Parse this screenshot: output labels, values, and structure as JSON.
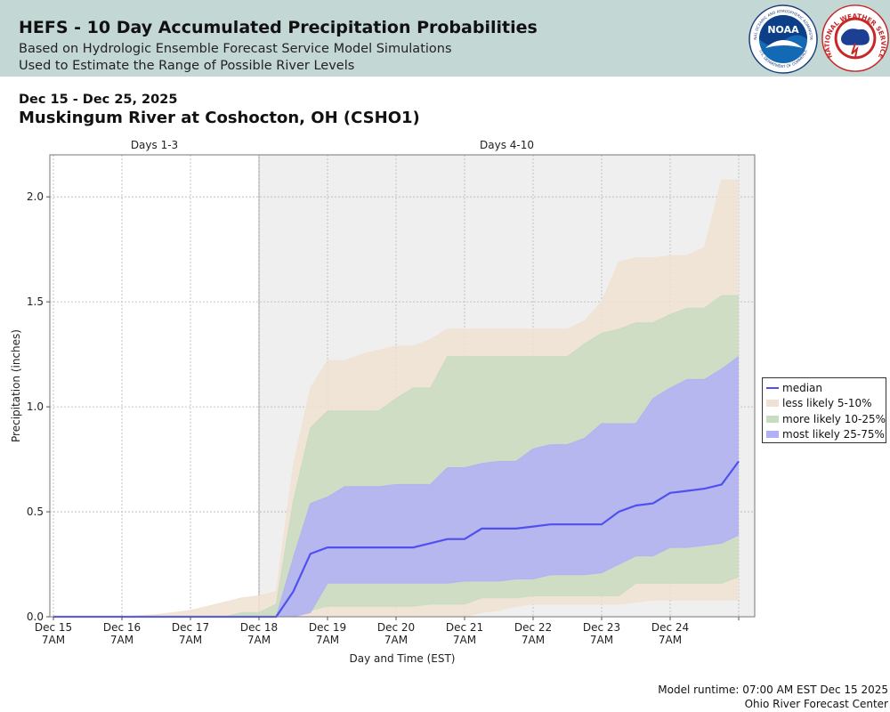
{
  "header": {
    "title": "HEFS - 10 Day Accumulated Precipitation Probabilities",
    "subtitle_1": "Based on Hydrologic Ensemble Forecast Service Model Simulations",
    "subtitle_2": "Used to Estimate the Range of Possible River Levels",
    "noaa_logo_text": "NOAA",
    "nws_logo_text": "NATIONAL WEATHER SERVICE",
    "noaa_ring_text": "NATIONAL OCEANIC AND ATMOSPHERIC ADMINISTRATION",
    "noaa_dept_text": "U.S. DEPARTMENT OF COMMERCE"
  },
  "date_range": "Dec 15 - Dec 25, 2025",
  "station": "Muskingum River at Coshocton, OH (CSHO1)",
  "footer": {
    "runtime": "Model runtime: 07:00 AM EST Dec 15 2025",
    "center": "Ohio River Forecast Center"
  },
  "colors": {
    "header_bg": "#c3d7d5",
    "median": "#5050f0",
    "less_likely": "#f0e2d2",
    "more_likely": "#c8dcc0",
    "most_likely": "#b0b0f6",
    "days_4_10_bg": "#efefef"
  },
  "chart_data": {
    "type": "area",
    "title": "",
    "xlabel": "Day and Time (EST)",
    "ylabel": "Precipitation (inches)",
    "ylim": [
      0,
      2.2
    ],
    "yticks": [
      "0.0",
      "0.5",
      "1.0",
      "1.5",
      "2.0"
    ],
    "xlim": [
      0,
      10
    ],
    "xtick_positions": [
      0,
      1,
      2,
      3,
      4,
      5,
      6,
      7,
      8,
      9
    ],
    "xticks": [
      [
        "Dec 15",
        "7AM"
      ],
      [
        "Dec 16",
        "7AM"
      ],
      [
        "Dec 17",
        "7AM"
      ],
      [
        "Dec 18",
        "7AM"
      ],
      [
        "Dec 19",
        "7AM"
      ],
      [
        "Dec 20",
        "7AM"
      ],
      [
        "Dec 21",
        "7AM"
      ],
      [
        "Dec 22",
        "7AM"
      ],
      [
        "Dec 23",
        "7AM"
      ],
      [
        "Dec 24",
        "7AM"
      ]
    ],
    "periods": [
      {
        "label": "Days 1-3",
        "start": 0,
        "end": 3,
        "shaded": false
      },
      {
        "label": "Days 4-10",
        "start": 3,
        "end": 10,
        "shaded": true
      }
    ],
    "grid": true,
    "legend_position": "right",
    "legend": [
      "median",
      "less likely 5-10%",
      "more likely 10-25%",
      "most likely 25-75%"
    ],
    "x": [
      0,
      0.25,
      0.5,
      0.75,
      1,
      1.25,
      1.5,
      1.75,
      2,
      2.25,
      2.5,
      2.75,
      3,
      3.25,
      3.5,
      3.75,
      4,
      4.25,
      4.5,
      4.75,
      5,
      5.25,
      5.5,
      5.75,
      6,
      6.25,
      6.5,
      6.75,
      7,
      7.25,
      7.5,
      7.75,
      8,
      8.25,
      8.5,
      8.75,
      9,
      9.25,
      9.5,
      9.75,
      10
    ],
    "bands": {
      "less_likely": {
        "low": [
          0,
          0,
          0,
          0,
          0,
          0,
          0,
          0,
          0,
          0,
          0,
          0,
          0,
          0,
          0,
          0,
          0,
          0,
          0,
          0,
          0,
          0,
          0,
          0,
          0,
          0.02,
          0.03,
          0.05,
          0.06,
          0.06,
          0.06,
          0.06,
          0.06,
          0.06,
          0.07,
          0.08,
          0.08,
          0.08,
          0.08,
          0.08,
          0.08
        ],
        "high": [
          0,
          0,
          0,
          0,
          0,
          0.005,
          0.01,
          0.02,
          0.03,
          0.05,
          0.07,
          0.09,
          0.1,
          0.12,
          0.72,
          1.09,
          1.22,
          1.22,
          1.25,
          1.27,
          1.29,
          1.29,
          1.32,
          1.37,
          1.37,
          1.37,
          1.37,
          1.37,
          1.37,
          1.37,
          1.37,
          1.41,
          1.5,
          1.69,
          1.71,
          1.71,
          1.72,
          1.72,
          1.76,
          2.08,
          2.08
        ]
      },
      "more_likely": {
        "low": [
          0,
          0,
          0,
          0,
          0,
          0,
          0,
          0,
          0,
          0,
          0,
          0,
          0,
          0,
          0,
          0.03,
          0.05,
          0.05,
          0.05,
          0.05,
          0.05,
          0.05,
          0.06,
          0.06,
          0.06,
          0.09,
          0.09,
          0.09,
          0.1,
          0.1,
          0.1,
          0.1,
          0.1,
          0.1,
          0.16,
          0.16,
          0.16,
          0.16,
          0.16,
          0.16,
          0.19
        ],
        "high": [
          0,
          0,
          0,
          0,
          0,
          0,
          0,
          0,
          0,
          0,
          0,
          0.02,
          0.02,
          0.06,
          0.55,
          0.9,
          0.98,
          0.98,
          0.98,
          0.98,
          1.04,
          1.09,
          1.09,
          1.24,
          1.24,
          1.24,
          1.24,
          1.24,
          1.24,
          1.24,
          1.24,
          1.3,
          1.35,
          1.37,
          1.4,
          1.4,
          1.44,
          1.47,
          1.47,
          1.53,
          1.53
        ]
      },
      "most_likely": {
        "low": [
          0,
          0,
          0,
          0,
          0,
          0,
          0,
          0,
          0,
          0,
          0,
          0,
          0,
          0,
          0,
          0.02,
          0.16,
          0.16,
          0.16,
          0.16,
          0.16,
          0.16,
          0.16,
          0.16,
          0.17,
          0.17,
          0.17,
          0.18,
          0.18,
          0.2,
          0.2,
          0.2,
          0.21,
          0.25,
          0.29,
          0.29,
          0.33,
          0.33,
          0.34,
          0.35,
          0.39
        ],
        "high": [
          0,
          0,
          0,
          0,
          0,
          0,
          0,
          0,
          0,
          0,
          0,
          0,
          0,
          0,
          0.28,
          0.54,
          0.57,
          0.62,
          0.62,
          0.62,
          0.63,
          0.63,
          0.63,
          0.71,
          0.71,
          0.73,
          0.74,
          0.74,
          0.8,
          0.82,
          0.82,
          0.85,
          0.92,
          0.92,
          0.92,
          1.04,
          1.09,
          1.13,
          1.13,
          1.18,
          1.24
        ]
      }
    },
    "series": [
      {
        "name": "median",
        "values": [
          0,
          0,
          0,
          0,
          0,
          0,
          0,
          0,
          0,
          0,
          0,
          0,
          0,
          0,
          0.12,
          0.3,
          0.33,
          0.33,
          0.33,
          0.33,
          0.33,
          0.33,
          0.35,
          0.37,
          0.37,
          0.42,
          0.42,
          0.42,
          0.43,
          0.44,
          0.44,
          0.44,
          0.44,
          0.5,
          0.53,
          0.54,
          0.59,
          0.6,
          0.61,
          0.63,
          0.74
        ]
      }
    ]
  }
}
